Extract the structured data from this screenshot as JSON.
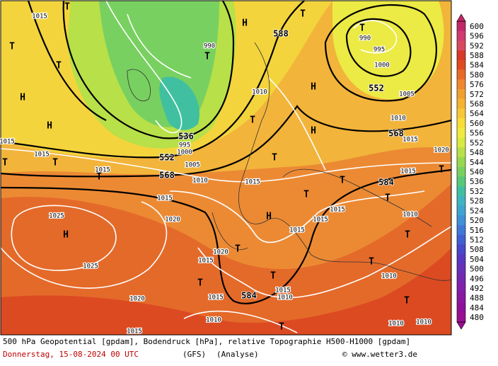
{
  "colorbar": {
    "levels": [
      600,
      596,
      592,
      588,
      584,
      580,
      576,
      572,
      568,
      564,
      560,
      556,
      552,
      548,
      544,
      540,
      536,
      532,
      528,
      524,
      520,
      516,
      512,
      508,
      504,
      500,
      496,
      492,
      488,
      484,
      480
    ],
    "colors": [
      "#c02868",
      "#d03a70",
      "#d84a60",
      "#d83828",
      "#e04a20",
      "#e86a28",
      "#f08830",
      "#f0a030",
      "#f4b430",
      "#f8c838",
      "#f8dc38",
      "#f0ea40",
      "#d8ea40",
      "#b8e048",
      "#98d850",
      "#78d060",
      "#58c878",
      "#40c0a0",
      "#40b4c0",
      "#40a4d0",
      "#4090d8",
      "#4078d8",
      "#4060d0",
      "#4848c8",
      "#5838c0",
      "#6830b8",
      "#7428b0",
      "#8020a8",
      "#8818a0",
      "#901098",
      "#981090"
    ]
  },
  "map_labels": {
    "heights": [
      "588",
      "552",
      "536",
      "552",
      "568",
      "568",
      "584",
      "584"
    ],
    "extrema": [
      "T",
      "T",
      "H",
      "H",
      "T",
      "T",
      "T",
      "T",
      "H",
      "T",
      "H",
      "T",
      "T",
      "H",
      "T",
      "H",
      "T",
      "T",
      "T",
      "T",
      "H",
      "T",
      "T",
      "T",
      "T",
      "T",
      "T",
      "T",
      "T"
    ],
    "isobars": [
      "1015",
      "1015",
      "1015",
      "1025",
      "1025",
      "1020",
      "1020",
      "1015",
      "1010",
      "1015",
      "1020",
      "1015",
      "1015",
      "1010",
      "1015",
      "1010",
      "1010",
      "1015",
      "1010",
      "1005",
      "1000",
      "995",
      "990",
      "990",
      "1005",
      "995",
      "1000",
      "1010",
      "1015",
      "1015",
      "1015",
      "1015",
      "1020",
      "1015",
      "1010",
      "1010",
      "1015",
      "1010"
    ]
  },
  "footer": {
    "line1": "500 hPa Geopotential [gpdam], Bodendruck [hPa], relative Topographie H500-H1000 [gpdam]",
    "date": "Donnerstag, 15-08-2024  00 UTC",
    "model": "(GFS)",
    "run": "(Analyse)",
    "credit": "© www.wetter3.de"
  }
}
